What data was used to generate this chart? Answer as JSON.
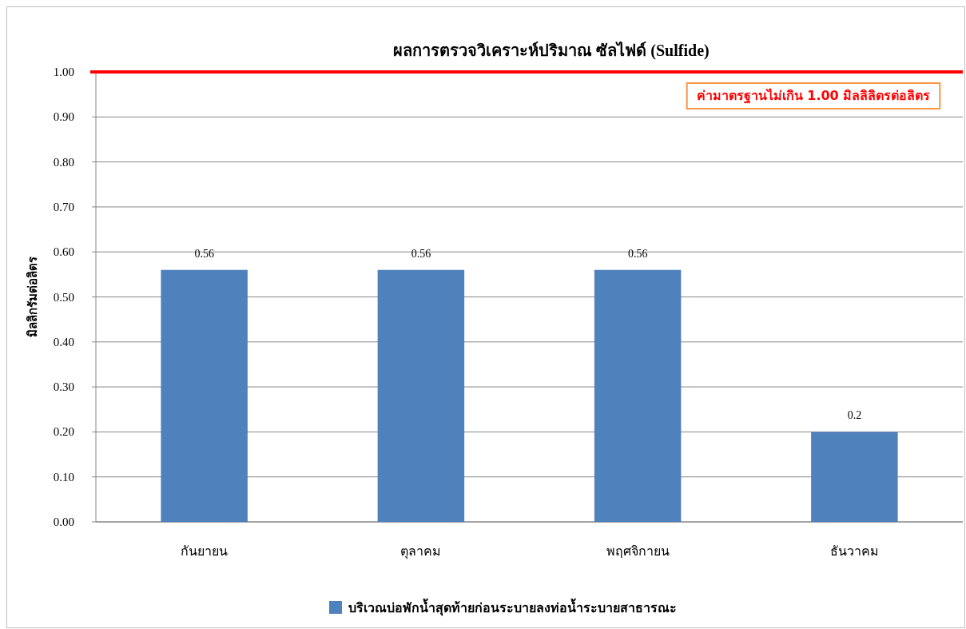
{
  "chart_data": {
    "type": "bar",
    "title": "ผลการตรวจวิเคราะห์ปริมาณ ซัลไฟด์ (Sulfide)",
    "ylabel": "มิลลิกรัมต่อลิตร",
    "categories": [
      "กันยายน",
      "ตุลาคม",
      "พฤศจิกายน",
      "ธันวาคม"
    ],
    "series": [
      {
        "name": "บริเวณบ่อพักน้ำสุดท้ายก่อนระบายลงท่อน้ำระบายสาธารณะ",
        "color": "#4f81bd",
        "values": [
          0.56,
          0.56,
          0.56,
          0.2
        ]
      }
    ],
    "ylim": [
      0,
      1
    ],
    "yticks": [
      {
        "value": 0,
        "label": "0.00"
      },
      {
        "value": 0.1,
        "label": "0.10"
      },
      {
        "value": 0.2,
        "label": "0.20"
      },
      {
        "value": 0.3,
        "label": "0.30"
      },
      {
        "value": 0.4,
        "label": "0.40"
      },
      {
        "value": 0.5,
        "label": "0.50"
      },
      {
        "value": 0.6,
        "label": "0.60"
      },
      {
        "value": 0.7,
        "label": "0.70"
      },
      {
        "value": 0.8,
        "label": "0.80"
      },
      {
        "value": 0.9,
        "label": "0.90"
      },
      {
        "value": 1,
        "label": "1.00"
      }
    ],
    "grid": "y",
    "legend": "bottom",
    "data_labels": true,
    "ref_lines": [
      {
        "axis": "y",
        "value": 1,
        "label": "ค่ามาตรฐานไม่เกิน 1.00 มิลลิลิตรต่อลิตร",
        "color": "#ff0000"
      }
    ]
  }
}
